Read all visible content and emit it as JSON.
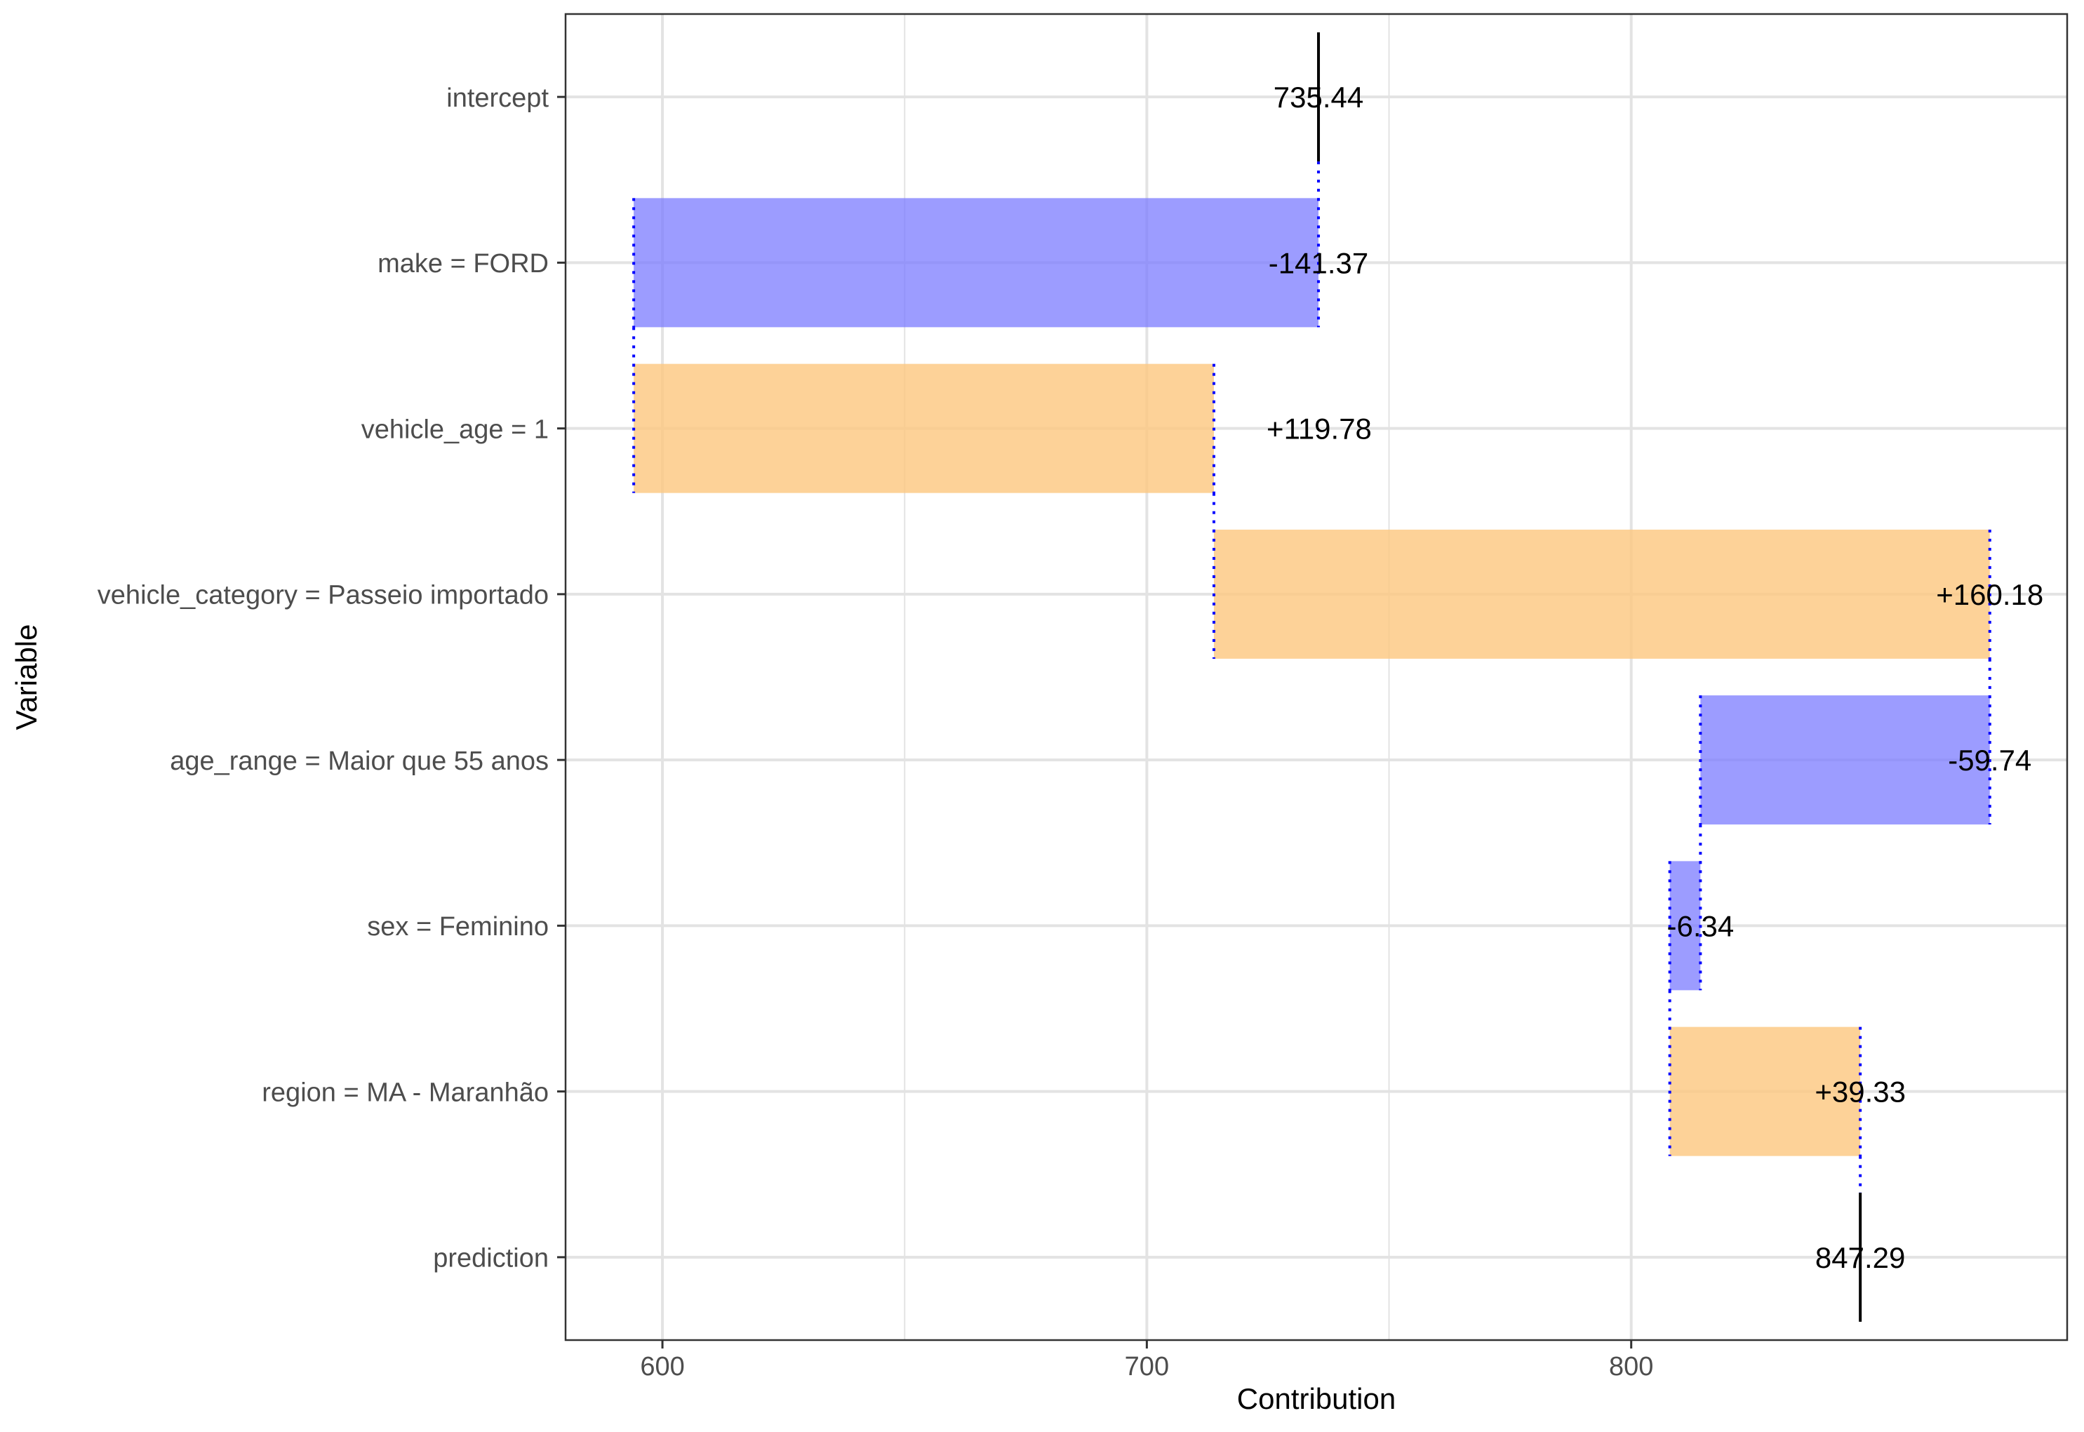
{
  "chart_data": {
    "type": "bar",
    "subtype": "waterfall-breakdown",
    "orientation": "horizontal",
    "xlabel": "Contribution",
    "ylabel": "Variable",
    "xlim": [
      580,
      890
    ],
    "xticks": [
      600,
      700,
      800
    ],
    "xtick_labels": [
      "600",
      "700",
      "800"
    ],
    "grid": true,
    "legend": "none",
    "colors": {
      "positive": "#fdc77e",
      "negative": "#7b7bff",
      "connector": "#0000ff",
      "baseline": "#000000",
      "grid": "#e3e3e3",
      "panel_border": "#333333"
    },
    "categories": [
      "intercept",
      "make = FORD",
      "vehicle_age = 1",
      "vehicle_category = Passeio importado",
      "age_range = Maior que 55 anos",
      "sex = Feminino",
      "region = MA - Maranhão",
      "prediction"
    ],
    "bars": [
      {
        "variable": "intercept",
        "kind": "baseline",
        "value": 735.44,
        "label": "735.44"
      },
      {
        "variable": "make = FORD",
        "kind": "negative",
        "start": 735.44,
        "end": 594.07,
        "contribution": -141.37,
        "label": "-141.37"
      },
      {
        "variable": "vehicle_age = 1",
        "kind": "positive",
        "start": 594.07,
        "end": 713.85,
        "contribution": 119.78,
        "label": "+119.78"
      },
      {
        "variable": "vehicle_category = Passeio importado",
        "kind": "positive",
        "start": 713.85,
        "end": 874.03,
        "contribution": 160.18,
        "label": "+160.18"
      },
      {
        "variable": "age_range = Maior que 55 anos",
        "kind": "negative",
        "start": 874.03,
        "end": 814.29,
        "contribution": -59.74,
        "label": "-59.74"
      },
      {
        "variable": "sex = Feminino",
        "kind": "negative",
        "start": 814.29,
        "end": 807.96,
        "contribution": -6.34,
        "label": "-6.34"
      },
      {
        "variable": "region = MA - Maranhão",
        "kind": "positive",
        "start": 807.96,
        "end": 847.29,
        "contribution": 39.33,
        "label": "+39.33"
      },
      {
        "variable": "prediction",
        "kind": "baseline",
        "value": 847.29,
        "label": "847.29"
      }
    ]
  }
}
